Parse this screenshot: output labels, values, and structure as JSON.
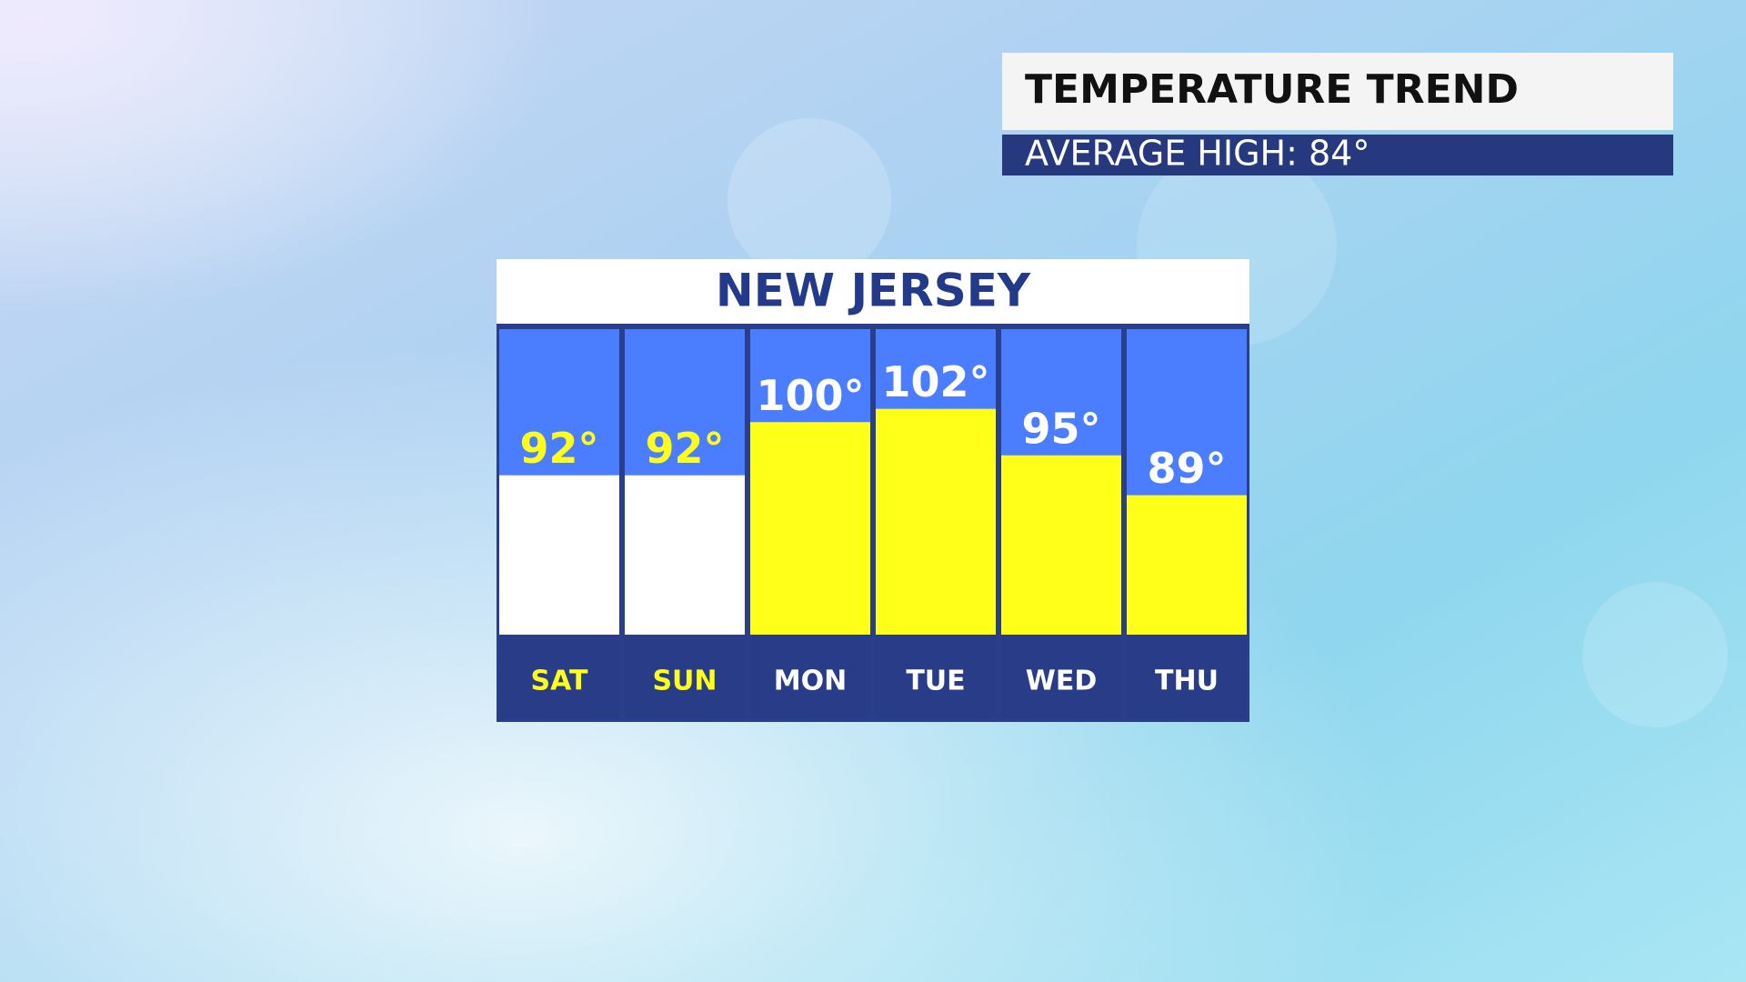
{
  "title": "TEMPERATURE TREND",
  "subtitle": "AVERAGE HIGH: 84°",
  "chart_data": {
    "type": "bar",
    "title": "NEW JERSEY",
    "categories": [
      "SAT",
      "SUN",
      "MON",
      "TUE",
      "WED",
      "THU"
    ],
    "values": [
      92,
      92,
      100,
      102,
      95,
      89
    ],
    "value_labels": [
      "92°",
      "92°",
      "100°",
      "102°",
      "95°",
      "89°"
    ],
    "bar_colors": [
      "#ffffff",
      "#ffffff",
      "#ffff1a",
      "#ffff1a",
      "#ffff1a",
      "#ffff1a"
    ],
    "label_colors": [
      "#ffff1a",
      "#ffff1a",
      "#ffffff",
      "#ffffff",
      "#ffffff",
      "#ffffff"
    ],
    "ylim": [
      68,
      114
    ]
  }
}
